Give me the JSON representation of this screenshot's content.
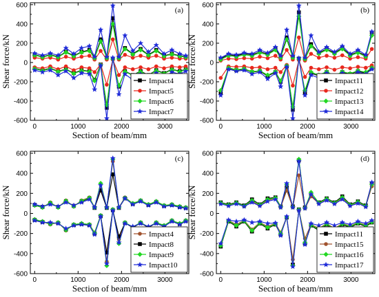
{
  "chart_data": [
    {
      "type": "line",
      "panel_label": "(a)",
      "xlabel": "Section of beam/mm",
      "ylabel": "Shear force/kN",
      "xlim": [
        -100,
        3550
      ],
      "ylim": [
        -600,
        620
      ],
      "x_ticks": [
        0,
        1000,
        2000,
        3000
      ],
      "y_ticks": [
        -600,
        -400,
        -200,
        0,
        200,
        400,
        600
      ],
      "legend_position": "bottom-right",
      "x": [
        0,
        180,
        360,
        540,
        720,
        900,
        1080,
        1260,
        1380,
        1520,
        1660,
        1800,
        1940,
        2080,
        2260,
        2440,
        2620,
        2800,
        2980,
        3160,
        3340,
        3480
      ],
      "series": [
        {
          "name": "Impact4",
          "color": "#000000",
          "marker": "square",
          "values_upper": [
            80,
            60,
            80,
            60,
            110,
            70,
            110,
            130,
            50,
            240,
            50,
            460,
            50,
            150,
            90,
            140,
            80,
            130,
            70,
            90,
            70,
            60
          ],
          "values_lower": [
            -60,
            -80,
            -60,
            -90,
            -70,
            -110,
            -80,
            -90,
            -180,
            -20,
            -470,
            40,
            -250,
            -90,
            -130,
            -90,
            -130,
            -80,
            -110,
            -70,
            -90,
            -70
          ]
        },
        {
          "name": "Impact5",
          "color": "#e8281e",
          "marker": "circle",
          "values_upper": [
            50,
            40,
            50,
            30,
            60,
            40,
            60,
            70,
            30,
            120,
            30,
            240,
            30,
            80,
            50,
            70,
            50,
            70,
            40,
            50,
            40,
            40
          ],
          "values_lower": [
            -50,
            -60,
            -40,
            -70,
            -40,
            -80,
            -50,
            -60,
            -100,
            -20,
            -230,
            30,
            -130,
            -50,
            -70,
            -50,
            -70,
            -40,
            -60,
            -40,
            -50,
            -40
          ]
        },
        {
          "name": "Impact6",
          "color": "#22d822",
          "marker": "diamond",
          "values_upper": [
            75,
            55,
            75,
            55,
            105,
            65,
            105,
            120,
            45,
            220,
            45,
            400,
            45,
            140,
            85,
            130,
            75,
            120,
            65,
            85,
            65,
            55
          ],
          "values_lower": [
            -65,
            -85,
            -65,
            -95,
            -75,
            -115,
            -85,
            -95,
            -190,
            -25,
            -440,
            35,
            -240,
            -95,
            -135,
            -95,
            -135,
            -85,
            -115,
            -75,
            -95,
            -75
          ]
        },
        {
          "name": "Impact7",
          "color": "#1f2bd8",
          "marker": "star",
          "values_upper": [
            95,
            75,
            95,
            75,
            150,
            90,
            150,
            170,
            60,
            340,
            60,
            590,
            60,
            280,
            120,
            200,
            110,
            180,
            90,
            130,
            90,
            70
          ],
          "values_lower": [
            -80,
            -100,
            -80,
            -130,
            -90,
            -160,
            -110,
            -120,
            -280,
            -30,
            -580,
            50,
            -330,
            -120,
            -180,
            -120,
            -180,
            -110,
            -150,
            -100,
            -120,
            -90
          ]
        }
      ]
    },
    {
      "type": "line",
      "panel_label": "(b)",
      "xlabel": "Section of beam/mm",
      "ylabel": "Shear force/kN",
      "xlim": [
        -100,
        3550
      ],
      "ylim": [
        -600,
        620
      ],
      "x_ticks": [
        0,
        1000,
        2000,
        3000
      ],
      "y_ticks": [
        -600,
        -400,
        -200,
        0,
        200,
        400,
        600
      ],
      "legend_position": "bottom-right",
      "x": [
        0,
        180,
        360,
        540,
        720,
        900,
        1080,
        1260,
        1380,
        1520,
        1660,
        1800,
        1940,
        2080,
        2260,
        2440,
        2620,
        2800,
        2980,
        3160,
        3340,
        3480
      ],
      "series": [
        {
          "name": "Impact11",
          "color": "#000000",
          "marker": "square",
          "values_upper": [
            40,
            80,
            70,
            90,
            80,
            110,
            90,
            140,
            60,
            260,
            60,
            520,
            40,
            190,
            100,
            140,
            100,
            150,
            80,
            110,
            70,
            310
          ],
          "values_lower": [
            -320,
            -60,
            -80,
            -70,
            -100,
            -90,
            -140,
            -100,
            -200,
            -40,
            -490,
            40,
            -310,
            -110,
            -140,
            -100,
            -150,
            -100,
            -120,
            -90,
            -110,
            -60
          ]
        },
        {
          "name": "Impact12",
          "color": "#e8281e",
          "marker": "circle",
          "values_upper": [
            20,
            40,
            35,
            45,
            40,
            60,
            45,
            70,
            30,
            130,
            30,
            260,
            20,
            90,
            50,
            70,
            50,
            75,
            40,
            55,
            40,
            140
          ],
          "values_lower": [
            -160,
            -40,
            -45,
            -40,
            -55,
            -50,
            -70,
            -55,
            -100,
            -25,
            -240,
            25,
            -150,
            -55,
            -70,
            -50,
            -75,
            -50,
            -60,
            -45,
            -55,
            -30
          ]
        },
        {
          "name": "Impact13",
          "color": "#22d822",
          "marker": "diamond",
          "values_upper": [
            30,
            70,
            60,
            80,
            70,
            100,
            80,
            130,
            50,
            240,
            50,
            480,
            35,
            170,
            90,
            130,
            90,
            140,
            70,
            100,
            60,
            280
          ],
          "values_lower": [
            -290,
            -55,
            -75,
            -65,
            -95,
            -85,
            -130,
            -95,
            -190,
            -35,
            -460,
            35,
            -290,
            -100,
            -130,
            -95,
            -140,
            -95,
            -115,
            -85,
            -100,
            -55
          ]
        },
        {
          "name": "Impact14",
          "color": "#1f2bd8",
          "marker": "star",
          "values_upper": [
            50,
            90,
            80,
            100,
            90,
            130,
            100,
            160,
            70,
            340,
            70,
            590,
            50,
            280,
            110,
            160,
            110,
            170,
            90,
            130,
            80,
            320
          ],
          "values_lower": [
            -340,
            -70,
            -90,
            -80,
            -120,
            -100,
            -170,
            -110,
            -250,
            -45,
            -580,
            45,
            -340,
            -130,
            -160,
            -110,
            -170,
            -110,
            -140,
            -100,
            -120,
            -70
          ]
        }
      ]
    },
    {
      "type": "line",
      "panel_label": "(c)",
      "xlabel": "Section of beam/mm",
      "ylabel": "Shear force/kN",
      "xlim": [
        -100,
        3550
      ],
      "ylim": [
        -600,
        620
      ],
      "x_ticks": [
        0,
        1000,
        2000,
        3000
      ],
      "y_ticks": [
        -600,
        -400,
        -200,
        0,
        200,
        400,
        600
      ],
      "legend_position": "bottom-right",
      "x": [
        0,
        180,
        360,
        540,
        720,
        900,
        1080,
        1260,
        1380,
        1520,
        1660,
        1800,
        1940,
        2080,
        2260,
        2440,
        2620,
        2800,
        2980,
        3160,
        3340,
        3480
      ],
      "series": [
        {
          "name": "Impact4",
          "color": "#a0522d",
          "marker": "circle",
          "values_upper": [
            80,
            60,
            110,
            60,
            130,
            70,
            130,
            160,
            60,
            240,
            60,
            520,
            60,
            160,
            100,
            130,
            90,
            120,
            80,
            90,
            70,
            60
          ],
          "values_lower": [
            -60,
            -80,
            -110,
            -90,
            -170,
            -110,
            -100,
            -110,
            -190,
            -20,
            -480,
            40,
            -260,
            -90,
            -140,
            -90,
            -140,
            -90,
            -120,
            -70,
            -100,
            -70
          ]
        },
        {
          "name": "Impact8",
          "color": "#000000",
          "marker": "square",
          "values_upper": [
            85,
            65,
            100,
            65,
            120,
            75,
            120,
            150,
            55,
            230,
            55,
            390,
            55,
            150,
            95,
            125,
            85,
            115,
            75,
            85,
            65,
            55
          ],
          "values_lower": [
            -65,
            -85,
            -100,
            -95,
            -160,
            -115,
            -105,
            -115,
            -200,
            -25,
            -390,
            35,
            -230,
            -95,
            -140,
            -95,
            -140,
            -95,
            -125,
            -75,
            -105,
            -75
          ]
        },
        {
          "name": "Impact9",
          "color": "#22d822",
          "marker": "diamond",
          "values_upper": [
            80,
            60,
            105,
            60,
            125,
            70,
            125,
            155,
            60,
            300,
            60,
            540,
            60,
            155,
            100,
            130,
            90,
            120,
            80,
            90,
            70,
            60
          ],
          "values_lower": [
            -60,
            -80,
            -105,
            -90,
            -165,
            -110,
            -100,
            -110,
            -195,
            -20,
            -520,
            40,
            -300,
            -90,
            -135,
            -90,
            -135,
            -90,
            -120,
            -70,
            -100,
            -70
          ]
        },
        {
          "name": "Impact10",
          "color": "#1f2bd8",
          "marker": "star",
          "values_upper": [
            90,
            70,
            90,
            70,
            110,
            80,
            110,
            140,
            60,
            280,
            60,
            550,
            60,
            150,
            90,
            120,
            80,
            110,
            70,
            80,
            60,
            50
          ],
          "values_lower": [
            -70,
            -90,
            -90,
            -100,
            -150,
            -120,
            -110,
            -120,
            -210,
            -30,
            -500,
            30,
            -290,
            -100,
            -130,
            -100,
            -130,
            -100,
            -130,
            -80,
            -110,
            -80
          ]
        }
      ]
    },
    {
      "type": "line",
      "panel_label": "(d)",
      "xlabel": "Section of beam/mm",
      "ylabel": "Shear force/kN",
      "xlim": [
        -100,
        3550
      ],
      "ylim": [
        -600,
        620
      ],
      "x_ticks": [
        0,
        1000,
        2000,
        3000
      ],
      "y_ticks": [
        -600,
        -400,
        -200,
        0,
        200,
        400,
        600
      ],
      "legend_position": "bottom-right",
      "x": [
        0,
        180,
        360,
        540,
        720,
        900,
        1080,
        1260,
        1380,
        1520,
        1660,
        1800,
        1940,
        2080,
        2260,
        2440,
        2620,
        2800,
        2980,
        3160,
        3340,
        3480
      ],
      "series": [
        {
          "name": "Impact11",
          "color": "#000000",
          "marker": "square",
          "values_upper": [
            110,
            90,
            110,
            80,
            140,
            90,
            150,
            160,
            70,
            260,
            70,
            530,
            60,
            180,
            110,
            150,
            110,
            170,
            90,
            120,
            80,
            300
          ],
          "values_lower": [
            -330,
            -80,
            -130,
            -80,
            -180,
            -100,
            -150,
            -110,
            -210,
            -40,
            -510,
            40,
            -300,
            -120,
            -170,
            -110,
            -170,
            -110,
            -140,
            -100,
            -130,
            -90
          ]
        },
        {
          "name": "Impact15",
          "color": "#a0522d",
          "marker": "circle",
          "values_upper": [
            100,
            80,
            100,
            70,
            120,
            80,
            130,
            150,
            60,
            230,
            60,
            380,
            50,
            170,
            100,
            140,
            100,
            150,
            80,
            110,
            70,
            270
          ],
          "values_lower": [
            -310,
            -70,
            -110,
            -70,
            -160,
            -90,
            -130,
            -100,
            -190,
            -35,
            -460,
            35,
            -250,
            -110,
            -150,
            -100,
            -150,
            -100,
            -125,
            -90,
            -115,
            -80
          ]
        },
        {
          "name": "Impact16",
          "color": "#22d822",
          "marker": "diamond",
          "values_upper": [
            105,
            85,
            105,
            75,
            130,
            85,
            140,
            155,
            65,
            290,
            65,
            540,
            55,
            210,
            105,
            145,
            105,
            160,
            85,
            115,
            75,
            290
          ],
          "values_lower": [
            -320,
            -75,
            -120,
            -75,
            -170,
            -95,
            -140,
            -105,
            -200,
            -38,
            -520,
            38,
            -290,
            -115,
            -160,
            -105,
            -160,
            -105,
            -130,
            -95,
            -120,
            -85
          ]
        },
        {
          "name": "Impact17",
          "color": "#1f2bd8",
          "marker": "star",
          "values_upper": [
            95,
            75,
            95,
            70,
            110,
            75,
            120,
            140,
            60,
            300,
            60,
            520,
            50,
            190,
            95,
            130,
            95,
            140,
            75,
            100,
            65,
            310
          ],
          "values_lower": [
            -300,
            -65,
            -80,
            -65,
            -90,
            -80,
            -100,
            -95,
            -220,
            -30,
            -530,
            30,
            -310,
            -100,
            -120,
            -90,
            -120,
            -90,
            -110,
            -80,
            -100,
            -70
          ]
        }
      ]
    }
  ]
}
